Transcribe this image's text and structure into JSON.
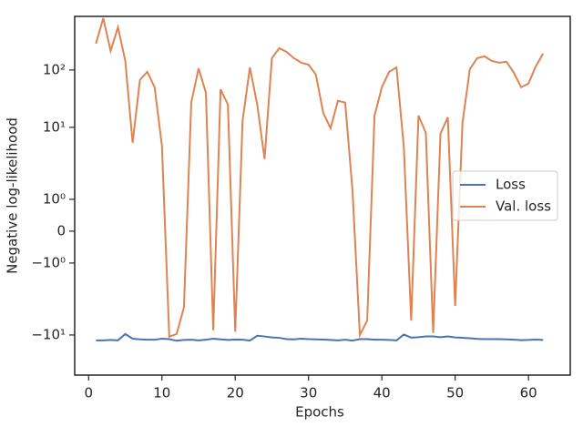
{
  "chart_data": {
    "type": "line",
    "x_label": "Epochs",
    "y_label": "Negative log-likelihood",
    "y_scale": "symlog",
    "linthresh": 2,
    "linscale": 1,
    "x": [
      1,
      2,
      3,
      4,
      5,
      6,
      7,
      8,
      9,
      10,
      11,
      12,
      13,
      14,
      15,
      16,
      17,
      18,
      19,
      20,
      21,
      22,
      23,
      24,
      25,
      26,
      27,
      28,
      29,
      30,
      31,
      32,
      33,
      34,
      35,
      36,
      37,
      38,
      39,
      40,
      41,
      42,
      43,
      44,
      45,
      46,
      47,
      48,
      49,
      50,
      51,
      52,
      53,
      54,
      55,
      56,
      57,
      58,
      59,
      60,
      61,
      62
    ],
    "series": [
      {
        "name": "Loss",
        "color": "#4c72b0",
        "values": [
          -12.4,
          -12.4,
          -12.2,
          -12.4,
          -9.6,
          -11.6,
          -11.9,
          -12.1,
          -12.1,
          -11.6,
          -11.8,
          -12.6,
          -12.2,
          -12.1,
          -12.4,
          -12.1,
          -11.6,
          -11.9,
          -12.2,
          -12.0,
          -12.1,
          -12.5,
          -10.3,
          -10.6,
          -11.0,
          -11.2,
          -11.8,
          -11.9,
          -11.6,
          -11.8,
          -11.9,
          -12.0,
          -12.2,
          -12.4,
          -12.1,
          -12.5,
          -11.8,
          -11.8,
          -12.1,
          -12.1,
          -12.2,
          -12.4,
          -9.8,
          -11.1,
          -10.9,
          -10.6,
          -10.6,
          -10.9,
          -10.6,
          -11.0,
          -11.2,
          -11.4,
          -11.7,
          -11.8,
          -11.8,
          -11.8,
          -11.9,
          -12.1,
          -12.3,
          -12.2,
          -12.0,
          -12.2
        ]
      },
      {
        "name": "Val. loss",
        "color": "#dd8452",
        "values": [
          288,
          802,
          215,
          557,
          144,
          5.4,
          67,
          93,
          50,
          4.8,
          -10.7,
          -9.6,
          -3.3,
          27,
          107,
          40,
          -8.3,
          46,
          25,
          -8.8,
          13,
          111,
          25,
          2.8,
          161,
          240,
          207,
          161,
          134,
          124,
          83,
          18,
          9.6,
          29,
          27,
          1.26,
          -10,
          -5.6,
          16,
          50,
          93,
          111,
          4.5,
          -5.6,
          16,
          8,
          -9.2,
          7.8,
          15,
          -3.1,
          12,
          103,
          161,
          173,
          144,
          134,
          139,
          90,
          50,
          58,
          116,
          193
        ]
      }
    ],
    "xlim": [
      -1.9,
      65.7
    ],
    "xticks": [
      0,
      10,
      20,
      30,
      40,
      50,
      60
    ],
    "ylim": [
      -50,
      860
    ],
    "yticks": [
      {
        "value": -10,
        "label": "−10¹"
      },
      {
        "value": -1,
        "label": "−10⁰"
      },
      0,
      {
        "value": 1,
        "label": "10⁰"
      },
      {
        "value": 10,
        "label": "10¹"
      },
      {
        "value": 100,
        "label": "10²"
      }
    ],
    "legend": "center right",
    "grid": false
  }
}
